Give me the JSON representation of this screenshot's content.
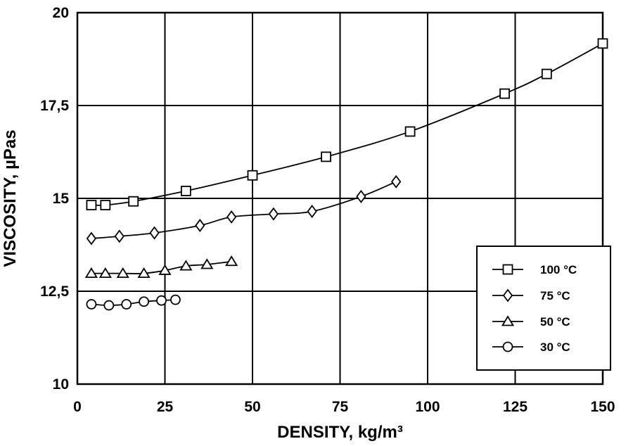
{
  "chart_data": {
    "type": "line",
    "xlabel": "DENSITY, kg/m³",
    "ylabel": "VISCOSITY, µPas",
    "xlim": [
      0,
      150
    ],
    "ylim": [
      10,
      20
    ],
    "x_ticks": [
      0,
      25,
      50,
      75,
      100,
      125,
      150
    ],
    "x_tick_labels": [
      "0",
      "25",
      "50",
      "75",
      "100",
      "125",
      "150"
    ],
    "y_ticks": [
      10,
      12.5,
      15,
      17.5,
      20
    ],
    "y_tick_labels": [
      "10",
      "12,5",
      "15",
      "17,5",
      "20"
    ],
    "grid": true,
    "legend_position": "bottom-right",
    "series": [
      {
        "name": "100 °C",
        "marker": "square",
        "points": [
          {
            "x": 4,
            "y": 14.82
          },
          {
            "x": 8,
            "y": 14.82
          },
          {
            "x": 16,
            "y": 14.92
          },
          {
            "x": 31,
            "y": 15.2
          },
          {
            "x": 50,
            "y": 15.62
          },
          {
            "x": 71,
            "y": 16.12
          },
          {
            "x": 95,
            "y": 16.8
          },
          {
            "x": 122,
            "y": 17.82
          },
          {
            "x": 134,
            "y": 18.35
          },
          {
            "x": 150,
            "y": 19.17
          }
        ]
      },
      {
        "name": "75 °C",
        "marker": "diamond",
        "points": [
          {
            "x": 4,
            "y": 13.92
          },
          {
            "x": 12,
            "y": 13.98
          },
          {
            "x": 22,
            "y": 14.07
          },
          {
            "x": 35,
            "y": 14.27
          },
          {
            "x": 44,
            "y": 14.5
          },
          {
            "x": 56,
            "y": 14.58
          },
          {
            "x": 67,
            "y": 14.65
          },
          {
            "x": 81,
            "y": 15.05
          },
          {
            "x": 91,
            "y": 15.45
          }
        ]
      },
      {
        "name": "50 °C",
        "marker": "triangle",
        "points": [
          {
            "x": 4,
            "y": 12.98
          },
          {
            "x": 8,
            "y": 12.98
          },
          {
            "x": 13,
            "y": 12.98
          },
          {
            "x": 19,
            "y": 12.98
          },
          {
            "x": 25,
            "y": 13.06
          },
          {
            "x": 31,
            "y": 13.18
          },
          {
            "x": 37,
            "y": 13.22
          },
          {
            "x": 44,
            "y": 13.3
          }
        ]
      },
      {
        "name": "30 °C",
        "marker": "circle",
        "points": [
          {
            "x": 4,
            "y": 12.15
          },
          {
            "x": 9,
            "y": 12.12
          },
          {
            "x": 14,
            "y": 12.15
          },
          {
            "x": 19,
            "y": 12.22
          },
          {
            "x": 24,
            "y": 12.25
          },
          {
            "x": 28,
            "y": 12.27
          }
        ]
      }
    ]
  }
}
